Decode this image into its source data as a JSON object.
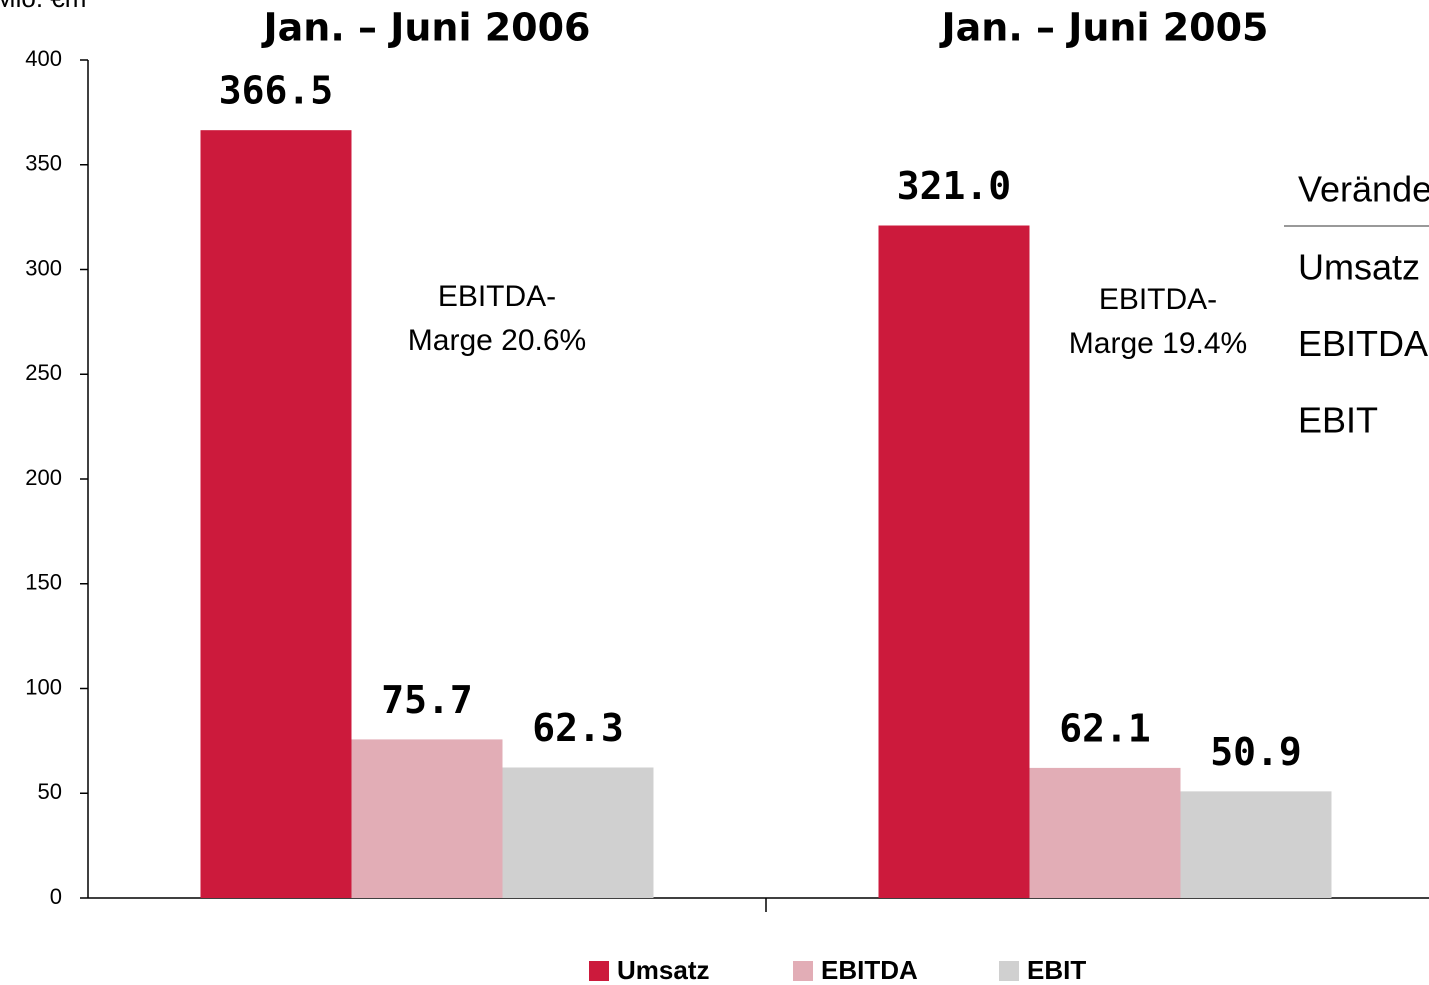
{
  "chart_data": {
    "type": "bar",
    "y_label": "Mio. €m",
    "categories": [
      "Jan. – Juni 2006",
      "Jan. – Juni 2005"
    ],
    "series": [
      {
        "name": "Umsatz",
        "color": "#cc1a3c",
        "values": [
          366.5,
          321.0
        ],
        "value_labels": [
          "366.5",
          "321.0"
        ]
      },
      {
        "name": "EBITDA",
        "color": "#e2adb6",
        "values": [
          75.7,
          62.1
        ],
        "value_labels": [
          "75.7",
          "62.1"
        ]
      },
      {
        "name": "EBIT",
        "color": "#d0d0d0",
        "values": [
          62.3,
          50.9
        ],
        "value_labels": [
          "62.3",
          "50.9"
        ]
      }
    ],
    "ylim": [
      0,
      400
    ],
    "yticks": [
      0,
      50,
      100,
      150,
      200,
      250,
      300,
      350,
      400
    ],
    "annotations": [
      [
        "EBITDA-",
        "Marge 20.6%"
      ],
      [
        "EBITDA-",
        "Marge 19.4%"
      ]
    ],
    "legend": "bottom"
  },
  "table": {
    "header": "Veränderung",
    "rows": [
      "Umsatz",
      "EBITDA",
      "EBIT"
    ]
  }
}
